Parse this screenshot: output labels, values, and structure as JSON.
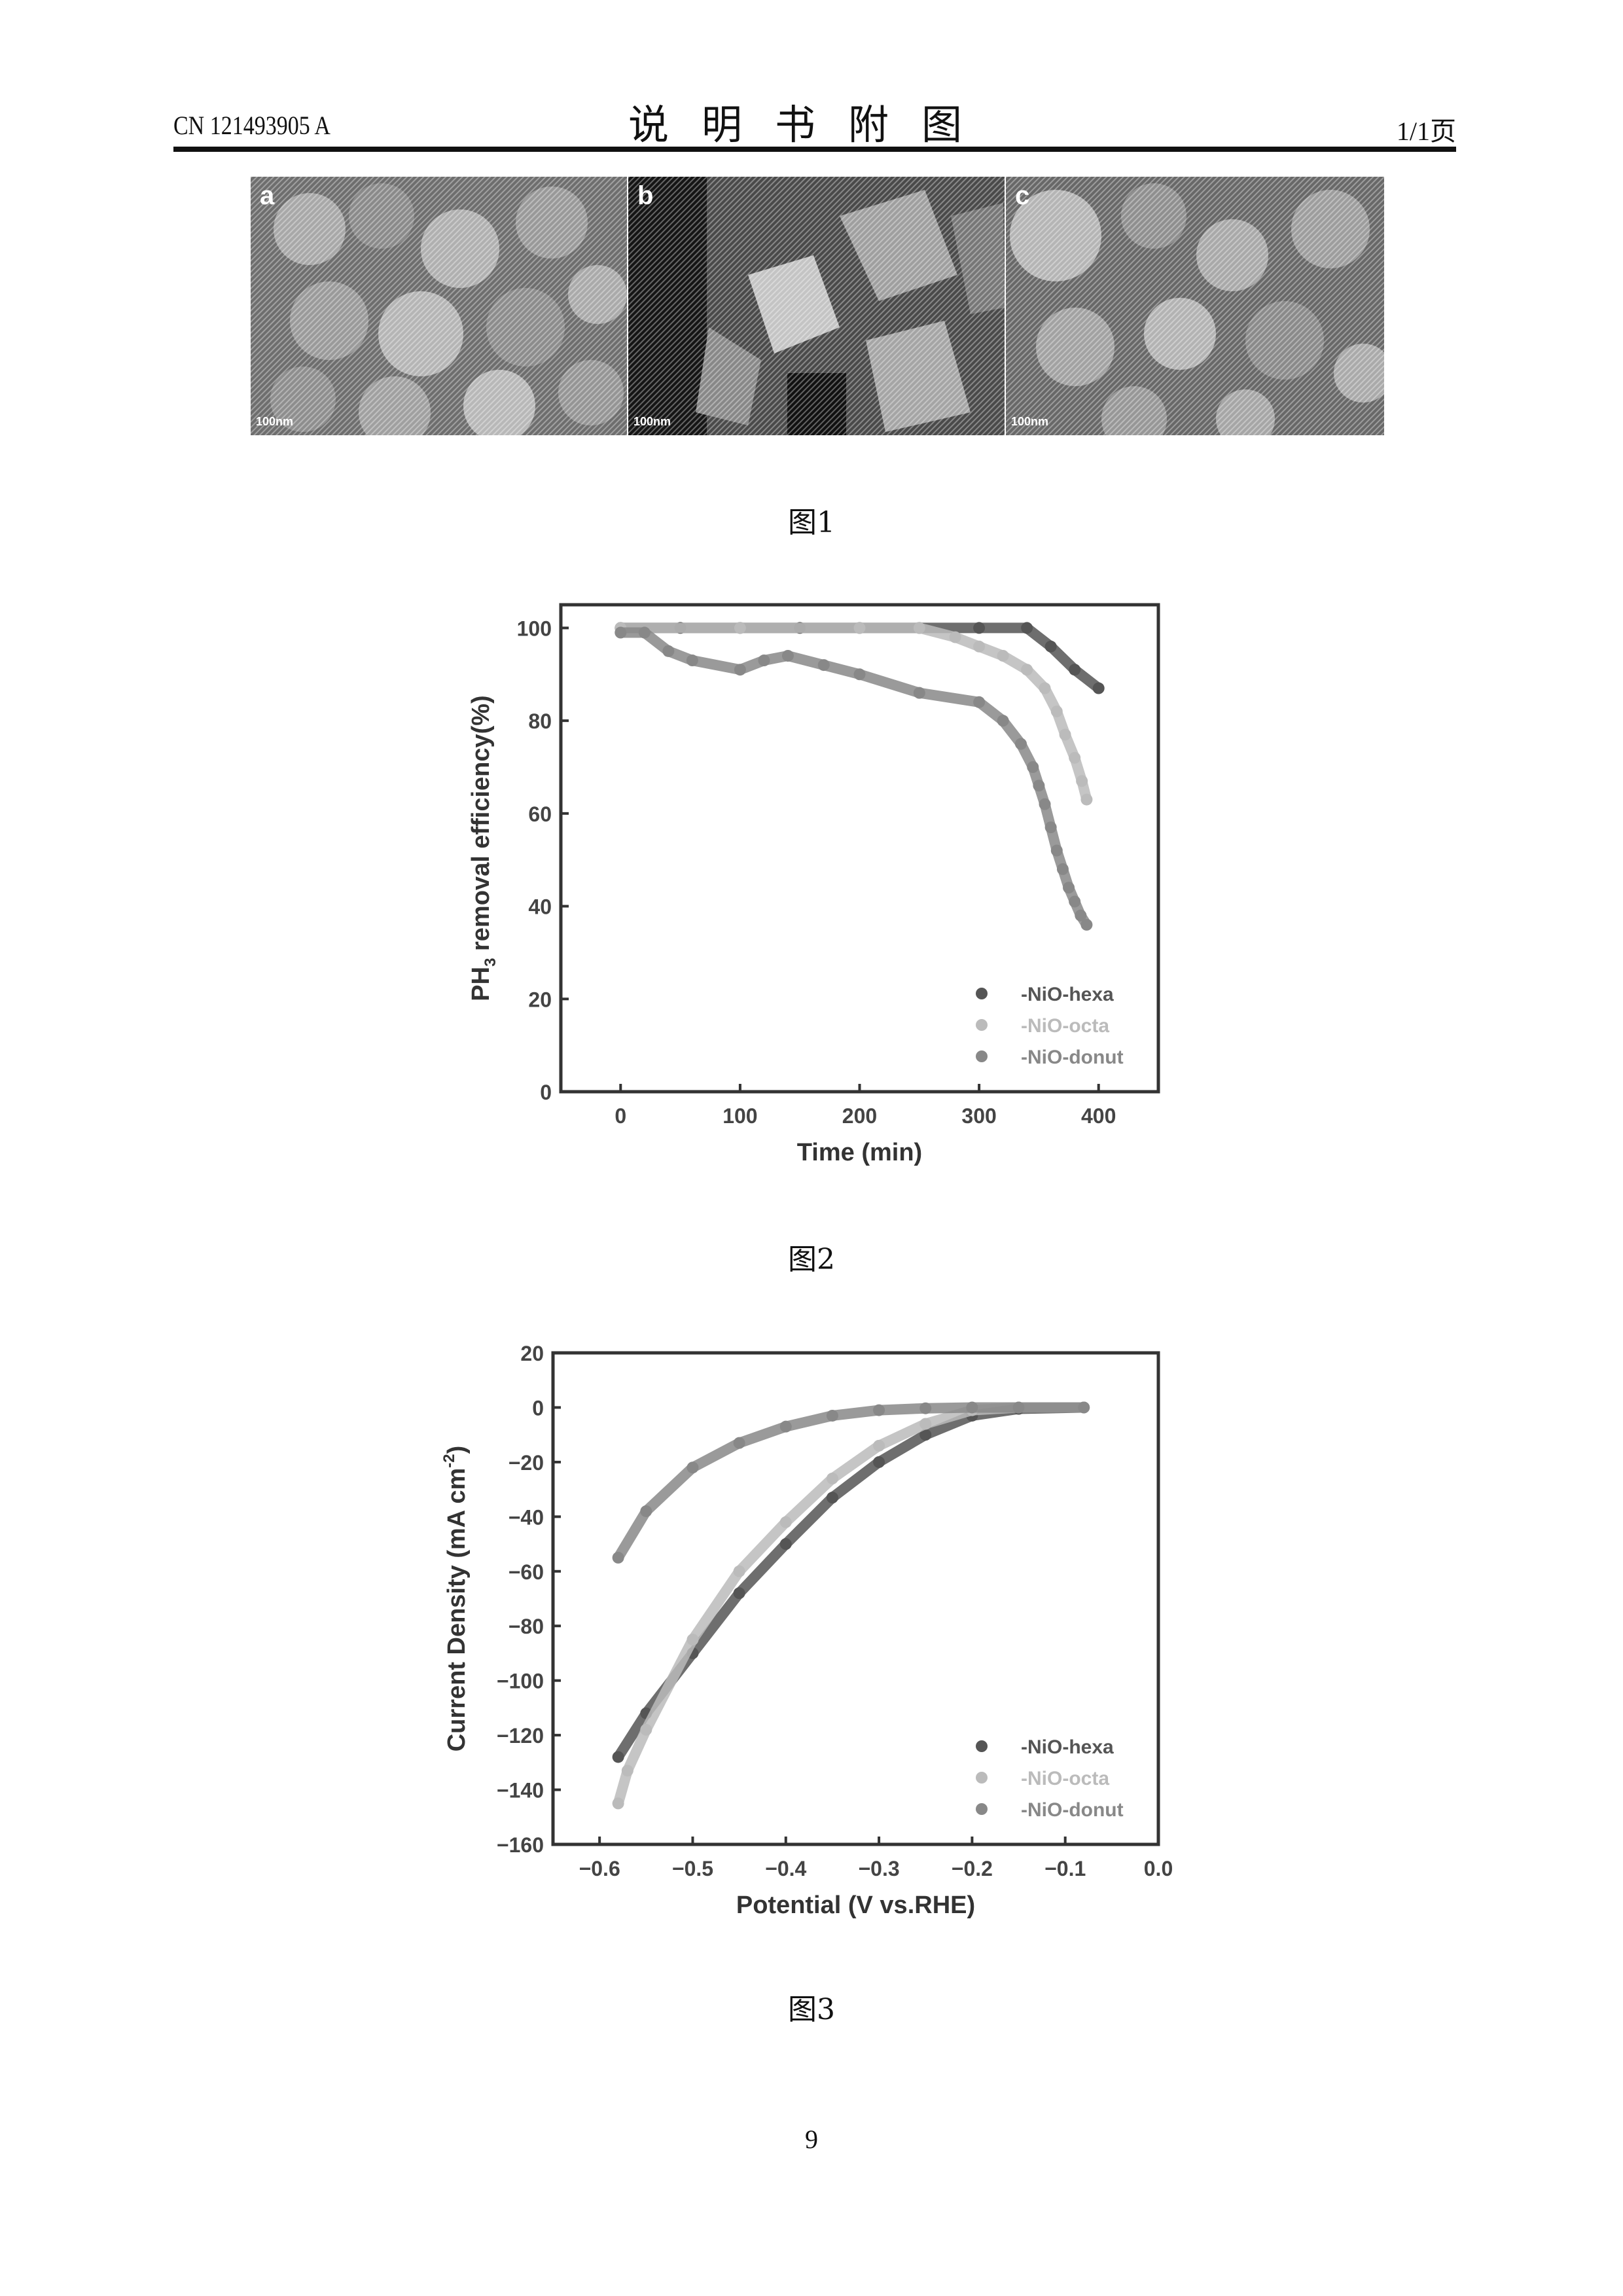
{
  "header": {
    "doc_number": "CN 121493905 A",
    "title": "说明书附图",
    "page": "1/1页"
  },
  "figure1": {
    "caption": "图1",
    "panels": [
      {
        "label": "a",
        "scale_bar": "100nm"
      },
      {
        "label": "b",
        "scale_bar": "100nm"
      },
      {
        "label": "c",
        "scale_bar": "100nm"
      }
    ]
  },
  "figure2": {
    "caption": "图2"
  },
  "figure3": {
    "caption": "图3"
  },
  "page_number": "9",
  "chart_data": [
    {
      "type": "scatter",
      "xlabel": "Time (min)",
      "ylabel": "PH3 removal efficiency(%)",
      "ylabel_parts": {
        "pre": "PH",
        "sub": "3",
        "post": " removal efficiency(%)"
      },
      "xlim": [
        -50,
        450
      ],
      "ylim": [
        0,
        105
      ],
      "xticks": [
        0,
        100,
        200,
        300,
        400
      ],
      "yticks": [
        0,
        20,
        40,
        60,
        80,
        100
      ],
      "legend_position": "bottom-right",
      "series": [
        {
          "name": "-NiO-hexa",
          "color": "#555555",
          "x": [
            0,
            50,
            100,
            150,
            200,
            250,
            300,
            340,
            360,
            380,
            400
          ],
          "y": [
            100,
            100,
            100,
            100,
            100,
            100,
            100,
            100,
            96,
            91,
            87
          ]
        },
        {
          "name": "-NiO-octa",
          "color": "#bbbbbb",
          "x": [
            0,
            100,
            200,
            250,
            280,
            300,
            320,
            340,
            355,
            365,
            372,
            380,
            386,
            390
          ],
          "y": [
            100,
            100,
            100,
            100,
            98,
            96,
            94,
            91,
            87,
            82,
            77,
            72,
            67,
            63
          ]
        },
        {
          "name": "-NiO-donut",
          "color": "#888888",
          "x": [
            0,
            20,
            40,
            60,
            100,
            120,
            140,
            170,
            200,
            250,
            300,
            320,
            335,
            345,
            350,
            355,
            360,
            365,
            370,
            375,
            380,
            385,
            390
          ],
          "y": [
            99,
            99,
            95,
            93,
            91,
            93,
            94,
            92,
            90,
            86,
            84,
            80,
            75,
            70,
            66,
            62,
            57,
            52,
            48,
            44,
            41,
            38,
            36
          ]
        }
      ]
    },
    {
      "type": "scatter",
      "xlabel": "Potential (V vs.RHE)",
      "ylabel": "Current Density (mA cm-2)",
      "ylabel_parts": {
        "pre": "Current Density (mA cm",
        "sup": "-2",
        "post": ")"
      },
      "xlim": [
        -0.65,
        0.0
      ],
      "ylim": [
        -160,
        20
      ],
      "xticks": [
        -0.6,
        -0.5,
        -0.4,
        -0.3,
        -0.2,
        -0.1,
        0.0
      ],
      "xtick_labels": [
        "-0.6",
        "-0.5",
        "-0.4",
        "-0.3",
        "-0.2",
        "-0.1",
        "0.0"
      ],
      "yticks": [
        20,
        0,
        -20,
        -40,
        -60,
        -80,
        -100,
        -120,
        -140,
        -160
      ],
      "legend_position": "bottom-right",
      "series": [
        {
          "name": "-NiO-hexa",
          "color": "#555555",
          "x": [
            -0.58,
            -0.55,
            -0.5,
            -0.45,
            -0.4,
            -0.35,
            -0.3,
            -0.25,
            -0.2,
            -0.15,
            -0.08
          ],
          "y": [
            -128,
            -112,
            -90,
            -68,
            -50,
            -33,
            -20,
            -10,
            -3,
            -0.5,
            0
          ]
        },
        {
          "name": "-NiO-octa",
          "color": "#bbbbbb",
          "x": [
            -0.58,
            -0.57,
            -0.55,
            -0.5,
            -0.45,
            -0.4,
            -0.35,
            -0.3,
            -0.25,
            -0.2,
            -0.15,
            -0.08
          ],
          "y": [
            -145,
            -133,
            -118,
            -85,
            -60,
            -42,
            -26,
            -14,
            -6,
            -1,
            0,
            0
          ]
        },
        {
          "name": "-NiO-donut",
          "color": "#888888",
          "x": [
            -0.58,
            -0.55,
            -0.5,
            -0.45,
            -0.4,
            -0.35,
            -0.3,
            -0.25,
            -0.2,
            -0.15,
            -0.08
          ],
          "y": [
            -55,
            -38,
            -22,
            -13,
            -7,
            -3,
            -1,
            -0.3,
            0,
            0,
            0
          ]
        }
      ]
    }
  ]
}
